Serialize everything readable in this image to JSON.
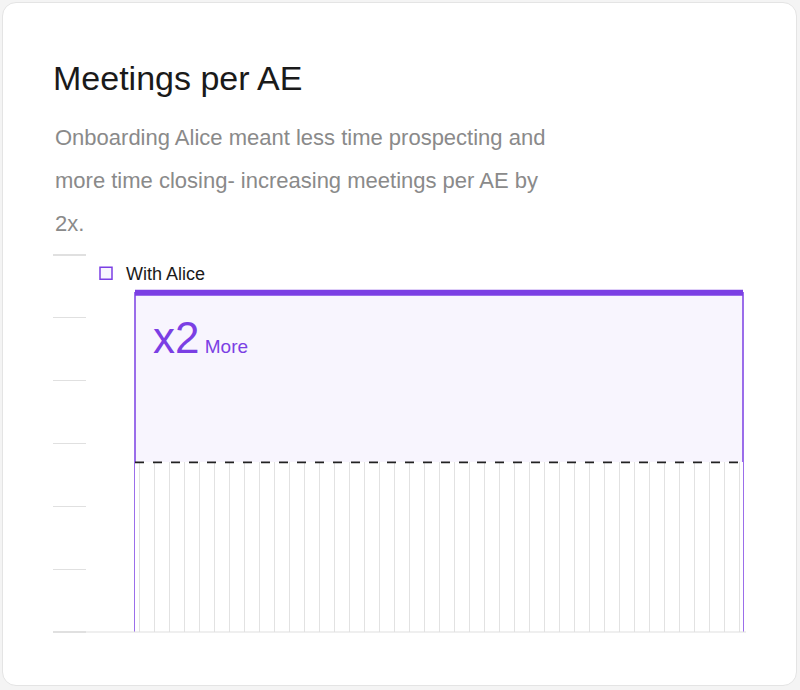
{
  "chart_data": {
    "type": "bar",
    "title": "Meetings per AE",
    "subtitle": "Onboarding Alice meant less time prospecting and more time closing- increasing meetings per AE by 2x.",
    "categories": [
      null
    ],
    "series": [
      {
        "name": "With Alice",
        "color": "#7b3fe4",
        "values": [
          5.4
        ]
      },
      {
        "type": "bar",
        "marker": "striped",
        "line_style": "dashed",
        "color": "#222222",
        "values": [
          2.7
        ]
      }
    ],
    "ylim": [
      0,
      6
    ],
    "yticks": [
      0,
      1,
      2,
      3,
      4,
      5,
      6
    ],
    "grid": false,
    "tick_labels": false,
    "legend": "top left",
    "annotations": [
      "x2 More"
    ]
  }
}
